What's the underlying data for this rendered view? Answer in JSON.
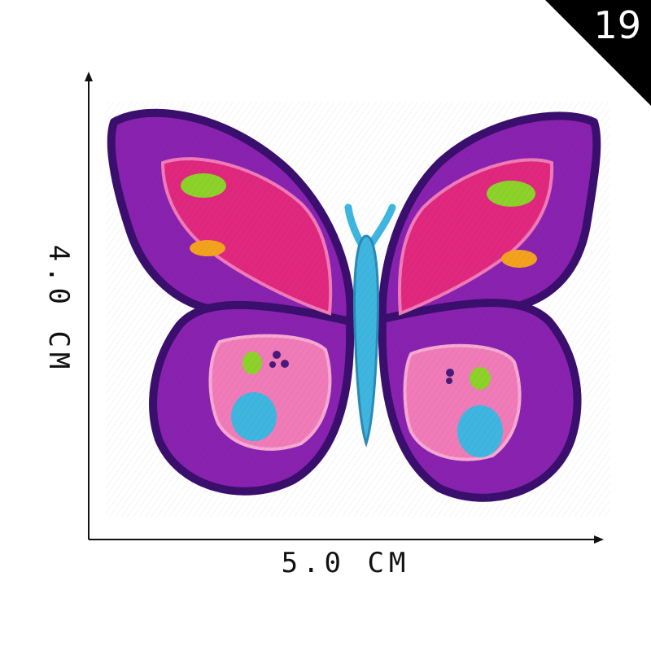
{
  "badge": {
    "number": "19"
  },
  "dimensions": {
    "width_label": "5.0 CM",
    "height_label": "4.0 CM"
  },
  "colors": {
    "outline": "#3a0f6e",
    "wing_purple": "#8a22b0",
    "magenta": "#e0287e",
    "pink": "#f07bb8",
    "body_blue": "#3fb6e0",
    "green": "#8cd22a",
    "orange": "#f2a21e",
    "dot": "#4a1a7a"
  }
}
